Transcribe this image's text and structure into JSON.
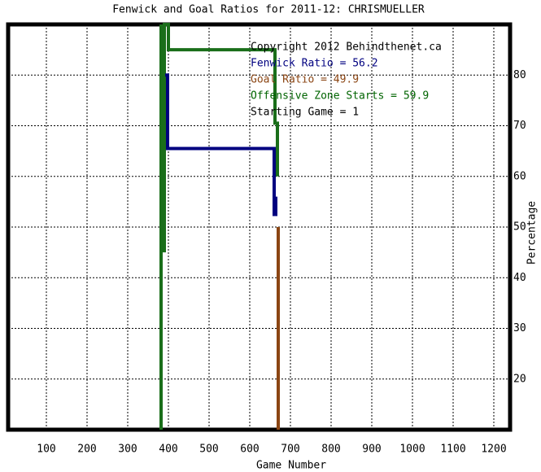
{
  "chart_data": {
    "type": "line",
    "title": "Fenwick and Goal Ratios for 2011-12: CHRISMUELLER",
    "x_label": "Game Number",
    "y_label": "Percentage",
    "annotations": [
      {
        "text": "Copyright 2012 Behindthenet.ca",
        "color": "#000000"
      },
      {
        "text": "Fenwick Ratio = 56.2",
        "color": "#000080"
      },
      {
        "text": "Goal Ratio = 49.9",
        "color": "#8b4513"
      },
      {
        "text": "Offensive Zone Starts = 59.9",
        "color": "#006400"
      },
      {
        "text": "Starting Game = 1",
        "color": "#000000"
      }
    ],
    "series": [
      {
        "color": "#1a6e1a",
        "x": [
          382,
          382,
          390,
          390,
          390,
          400,
          400,
          662,
          662,
          668,
          668
        ],
        "values": [
          10,
          90,
          null,
          45,
          90,
          90,
          85,
          85,
          70.5,
          70.5,
          60
        ]
      },
      {
        "color": "#000080",
        "x": [
          392,
          398,
          398,
          660,
          660,
          664,
          664
        ],
        "values": [
          80,
          80,
          65.5,
          65.5,
          52.5,
          52.5,
          56
        ]
      },
      {
        "color": "#8b4513",
        "x": [
          670,
          670
        ],
        "values": [
          50,
          10
        ]
      }
    ],
    "xlim": [
      6,
      1240
    ],
    "ylim": [
      10,
      90
    ],
    "xticks": [
      100,
      200,
      300,
      400,
      500,
      600,
      700,
      800,
      900,
      1000,
      1100,
      1200
    ],
    "yticks": [
      20,
      30,
      40,
      50,
      60,
      70,
      80
    ],
    "grid": true
  }
}
